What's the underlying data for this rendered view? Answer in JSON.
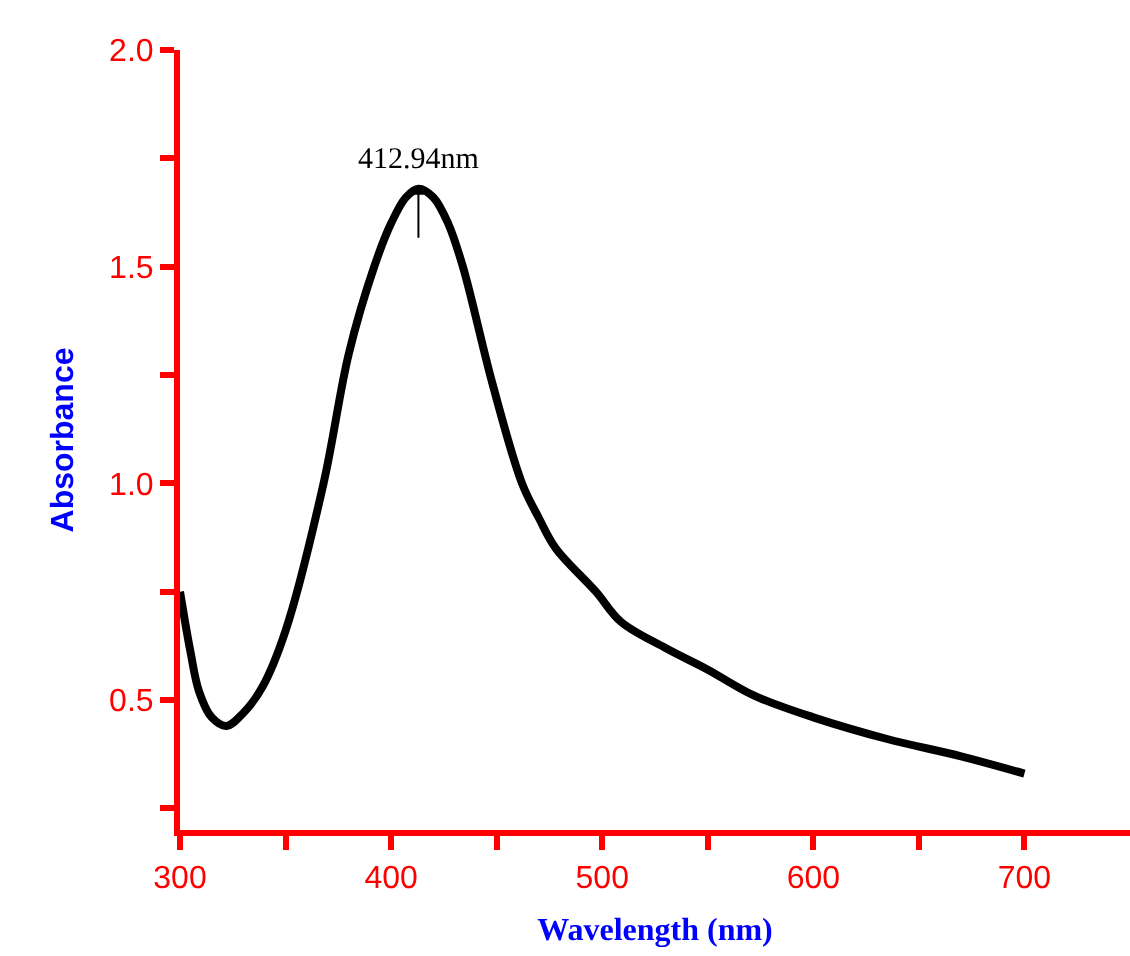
{
  "chart_data": {
    "type": "line",
    "xlabel": "Wavelength (nm)",
    "ylabel": "Absorbance",
    "annotations": [
      {
        "text": "412.94nm",
        "x": 412.94,
        "y": 1.68
      }
    ],
    "x": [
      300,
      305,
      309,
      315,
      322,
      330,
      339,
      350,
      368,
      380,
      392,
      400,
      407,
      413,
      420,
      427,
      434,
      448,
      462,
      470,
      478,
      497,
      509,
      530,
      550,
      572,
      600,
      635,
      670,
      700
    ],
    "series": [
      {
        "color": "#000000",
        "values": [
          0.75,
          0.61,
          0.52,
          0.46,
          0.44,
          0.47,
          0.53,
          0.66,
          1.0,
          1.3,
          1.5,
          1.6,
          1.66,
          1.68,
          1.66,
          1.6,
          1.5,
          1.23,
          1.0,
          0.92,
          0.85,
          0.75,
          0.68,
          0.62,
          0.57,
          0.51,
          0.46,
          0.41,
          0.37,
          0.33
        ]
      }
    ],
    "xlim": [
      300,
      750
    ],
    "xticks": [
      300,
      {
        "value": 350,
        "label": null
      },
      400,
      {
        "value": 450,
        "label": null
      },
      500,
      {
        "value": 550,
        "label": null
      },
      600,
      {
        "value": 650,
        "label": null
      },
      700
    ],
    "ylim": [
      0.2,
      2.0
    ],
    "yticks": [
      {
        "value": 0.25,
        "label": null
      },
      0.5,
      {
        "value": 0.75,
        "label": null
      },
      {
        "value": 1,
        "label": "1.0"
      },
      {
        "value": 1.25,
        "label": null
      },
      1.5,
      {
        "value": 1.75,
        "label": null
      },
      {
        "value": 2,
        "label": "2.0"
      }
    ],
    "marker": "none",
    "line_style": "solid"
  }
}
